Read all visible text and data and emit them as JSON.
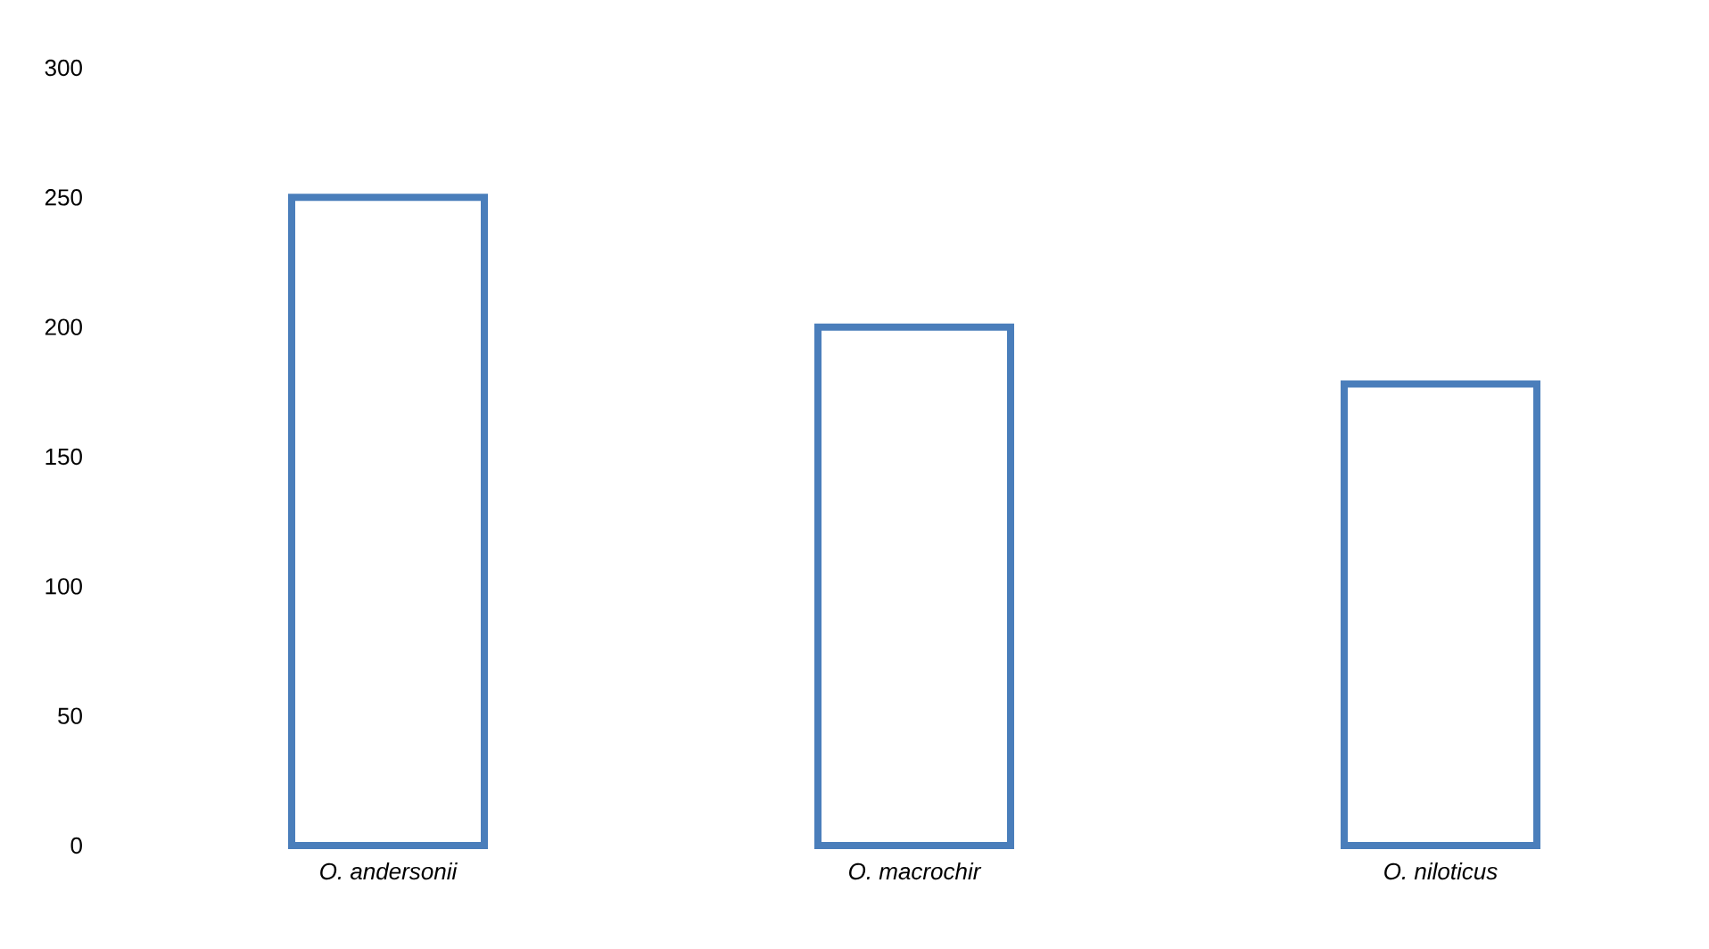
{
  "chart_data": {
    "type": "bar",
    "categories": [
      "O. andersonii",
      "O. macrochir",
      "O. niloticus"
    ],
    "values": [
      250,
      200,
      178
    ],
    "color": "#4a7ebb",
    "ylim": [
      0,
      300
    ],
    "yticks": [
      0,
      50,
      100,
      150,
      200,
      250,
      300
    ]
  }
}
